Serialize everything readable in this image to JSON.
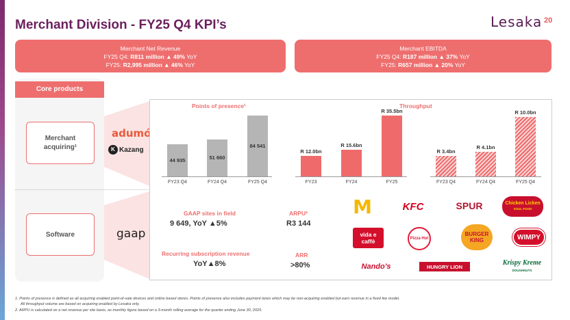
{
  "header": {
    "title": "Merchant Division - FY25 Q4 KPI’s",
    "logo": "Lesaka",
    "page_number": "20"
  },
  "kpis": {
    "revenue": {
      "title": "Merchant Net Revenue",
      "q4_prefix": "FY25 Q4: ",
      "q4_value": "R811 million ▲ 49%",
      "q4_suffix": " YoY",
      "fy_prefix": "FY25: ",
      "fy_value": "R2,995 million ▲ 46%",
      "fy_suffix": " YoY"
    },
    "ebitda": {
      "title": "Merchant EBITDA",
      "q4_prefix": "FY25 Q4: ",
      "q4_value": "R187 million ▲ 37%",
      "q4_suffix": " YoY",
      "fy_prefix": "FY25: ",
      "fy_value": "R657 million ▲ 20%",
      "fy_suffix": " YoY"
    }
  },
  "core_products": {
    "heading": "Core products",
    "merchant_acquiring_line1": "Merchant",
    "merchant_acquiring_line2": "acquiring¹",
    "software": "Software",
    "brand_adumo": "adumó",
    "brand_kazang": "Kazang",
    "brand_kazang_badge": "K",
    "brand_gaap": "gaap"
  },
  "chart_data": [
    {
      "type": "bar",
      "title": "Points of presence¹",
      "categories": [
        "FY23 Q4",
        "FY24 Q4",
        "FY25 Q4"
      ],
      "values": [
        44935,
        51660,
        84541
      ],
      "value_labels": [
        "44 935",
        "51 660",
        "84 541"
      ],
      "colors": [
        "#b5b5b5",
        "#b5b5b5",
        "#b5b5b5"
      ],
      "ylim": [
        0,
        95000
      ]
    },
    {
      "type": "bar",
      "title": "Throughput",
      "categories": [
        "FY23",
        "FY24",
        "FY25"
      ],
      "values": [
        12.0,
        15.6,
        35.5
      ],
      "value_labels": [
        "R 12.0bn",
        "R 15.6bn",
        "R 35.5bn"
      ],
      "colors": [
        "#ef6a6a",
        "#ef6a6a",
        "#ef6a6a"
      ],
      "ylim": [
        0,
        40
      ]
    },
    {
      "type": "bar",
      "title": "",
      "categories": [
        "FY23 Q4",
        "FY24 Q4",
        "FY25 Q4"
      ],
      "values": [
        3.4,
        4.1,
        10.0
      ],
      "value_labels": [
        "R 3.4bn",
        "R 4.1bn",
        "R 10.0bn"
      ],
      "pattern": "hatched",
      "ylim": [
        0,
        11.5
      ]
    }
  ],
  "software_metrics": {
    "gaap_sites_label": "GAAP sites in field",
    "gaap_sites_value": "9 649, YoY ▲5%",
    "recurring_label": "Recurring subscription revenue",
    "recurring_value": "YoY▲8%",
    "arpu_label": "ARPU²",
    "arpu_value": "R3 144",
    "arr_label": "ARR",
    "arr_value": ">80%"
  },
  "customer_logos": {
    "mcdonalds": "M",
    "kfc": "KFC",
    "spur": "SPUR",
    "chicken_licken": "Chicken Licken",
    "chicken_licken_tag": "SOUL FOOD",
    "vida": "vida e caffè",
    "pizza_hut": "Pizza Hut",
    "burger_king": "BURGER KING",
    "wimpy": "WIMPY",
    "nandos": "Nando's",
    "hungry_lion": "HUNGRY LION",
    "krispy_kreme": "Krispy Kreme",
    "krispy_kreme_tag": "DOUGHNUTS"
  },
  "footnotes": {
    "note1": "1.  Points of presence is defined as all acquiring enabled point-of-sale devices and online based stores. Points of presence also includes payment lanes which may be non-acquiring enabled but earn revenue in a fixed fee model.",
    "note1b": "All throughput volume are based on acquiring enabled by Lesaka only.",
    "note2": "2.  ARPU is calculated on a net revenue per site basis, as monthly figure based on a 3-month rolling average for the quarter ending June 30, 2025."
  },
  "colors": {
    "accent": "#ee6e6e",
    "title": "#6b1f5e",
    "bar_grey": "#b5b5b5",
    "bar_red": "#ef6a6a"
  }
}
